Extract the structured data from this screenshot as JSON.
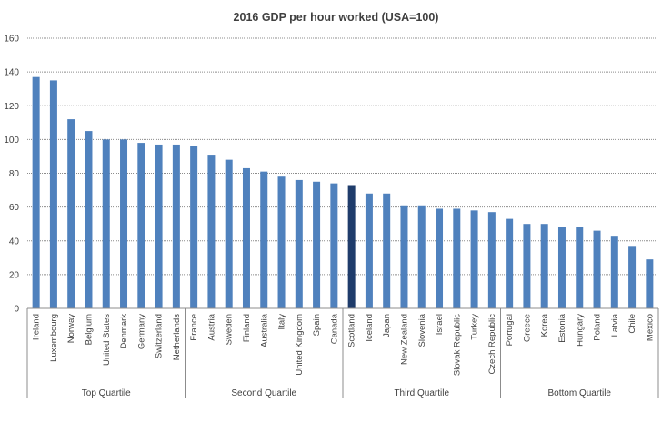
{
  "chart_data": {
    "type": "bar",
    "title": "2016 GDP per hour worked (USA=100)",
    "xlabel": "",
    "ylabel": "",
    "ylim": [
      0,
      160
    ],
    "yticks": [
      0,
      20,
      40,
      60,
      80,
      100,
      120,
      140,
      160
    ],
    "grid": true,
    "legend": "none",
    "categories": [
      "Ireland",
      "Luxembourg",
      "Norway",
      "Belgium",
      "United States",
      "Denmark",
      "Germany",
      "Switzerland",
      "Netherlands",
      "France",
      "Austria",
      "Sweden",
      "Finland",
      "Australia",
      "Italy",
      "United Kingdom",
      "Spain",
      "Canada",
      "Scotland",
      "Iceland",
      "Japan",
      "New Zealand",
      "Slovenia",
      "Israel",
      "Slovak Republic",
      "Turkey",
      "Czech Republic",
      "Portugal",
      "Greece",
      "Korea",
      "Estonia",
      "Hungary",
      "Poland",
      "Latvia",
      "Chile",
      "Mexico"
    ],
    "values": [
      137,
      135,
      112,
      105,
      100,
      100,
      98,
      97,
      97,
      96,
      91,
      88,
      83,
      81,
      78,
      76,
      75,
      74,
      73,
      68,
      68,
      61,
      61,
      59,
      59,
      58,
      57,
      53,
      50,
      50,
      48,
      48,
      46,
      43,
      37,
      29
    ],
    "highlight": "Scotland",
    "colors": {
      "bar": "#4f81bd",
      "highlight": "#1f3c6b",
      "grid": "#8c8c8c",
      "axis": "#8c8c8c",
      "text": "#404040"
    },
    "groups": [
      {
        "label": "Top Quartile",
        "count": 9
      },
      {
        "label": "Second Quartile",
        "count": 9
      },
      {
        "label": "Third Quartile",
        "count": 9
      },
      {
        "label": "Bottom Quartile",
        "count": 9
      }
    ]
  }
}
